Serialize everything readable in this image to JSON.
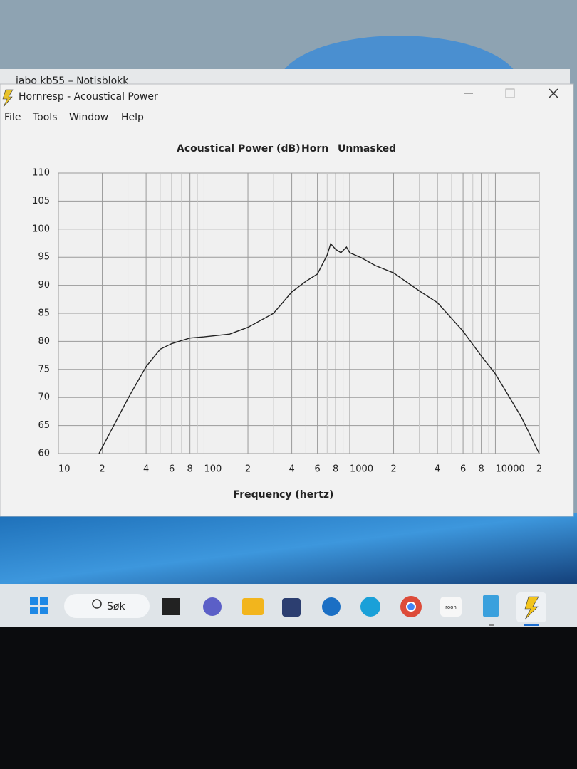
{
  "background_window": {
    "title": "jabo kb55 – Notisblokk"
  },
  "window": {
    "title": "Hornresp - Acoustical Power",
    "menu": [
      "File",
      "Tools",
      "Window",
      "Help"
    ]
  },
  "chart_data": {
    "type": "line",
    "title": [
      "Acoustical Power (dB)",
      "Horn",
      "Unmasked"
    ],
    "x_label": "Frequency (hertz)",
    "x_log": true,
    "xlim": [
      10,
      20000
    ],
    "xticks": [
      10,
      {
        "value": 20,
        "label": "2"
      },
      {
        "value": 40,
        "label": "4"
      },
      {
        "value": 60,
        "label": "6"
      },
      {
        "value": 80,
        "label": "8"
      },
      100,
      {
        "value": 200,
        "label": "2"
      },
      {
        "value": 400,
        "label": "4"
      },
      {
        "value": 600,
        "label": "6"
      },
      {
        "value": 800,
        "label": "8"
      },
      1000,
      {
        "value": 2000,
        "label": "2"
      },
      {
        "value": 4000,
        "label": "4"
      },
      {
        "value": 6000,
        "label": "6"
      },
      {
        "value": 8000,
        "label": "8"
      },
      10000,
      {
        "value": 20000,
        "label": "2"
      }
    ],
    "x_minor_grid": [
      30,
      50,
      70,
      90,
      300,
      500,
      700,
      900,
      3000,
      5000,
      7000,
      9000
    ],
    "ylim": [
      60,
      110
    ],
    "yticks": [
      60,
      65,
      70,
      75,
      80,
      85,
      90,
      95,
      100,
      105,
      110
    ],
    "grid": true,
    "x": [
      19,
      30,
      40,
      50,
      60,
      80,
      100,
      150,
      200,
      300,
      400,
      500,
      600,
      700,
      740,
      800,
      870,
      950,
      1000,
      1200,
      1500,
      2000,
      3000,
      4000,
      6000,
      8000,
      10000,
      15000,
      20000
    ],
    "series": [
      {
        "color": "#222222",
        "values": [
          60,
          69.8,
          75.5,
          78.6,
          79.6,
          80.6,
          80.8,
          81.3,
          82.5,
          85,
          88.8,
          90.7,
          92,
          95.4,
          97.4,
          96.4,
          95.8,
          96.8,
          95.8,
          94.9,
          93.5,
          92.2,
          89,
          86.9,
          81.8,
          77.4,
          74.2,
          66.6,
          60
        ]
      }
    ]
  },
  "taskbar": {
    "search": "Søk",
    "app_label": "roon"
  }
}
